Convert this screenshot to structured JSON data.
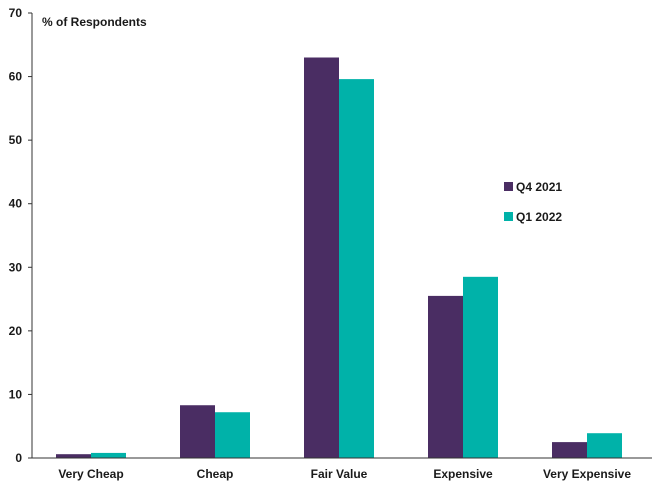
{
  "chart_data": {
    "type": "bar",
    "ylabel": "% of Respondents",
    "ylim": [
      0,
      70
    ],
    "yticks": [
      0,
      10,
      20,
      30,
      40,
      50,
      60,
      70
    ],
    "categories": [
      "Very Cheap",
      "Cheap",
      "Fair Value",
      "Expensive",
      "Very Expensive"
    ],
    "series": [
      {
        "name": "Q4 2021",
        "color": "#4a2d63",
        "values": [
          0.6,
          8.3,
          63.0,
          25.5,
          2.5
        ]
      },
      {
        "name": "Q1 2022",
        "color": "#00b2a9",
        "values": [
          0.8,
          7.2,
          59.6,
          28.5,
          3.9
        ]
      }
    ],
    "legend_position": "right",
    "grid": false
  }
}
